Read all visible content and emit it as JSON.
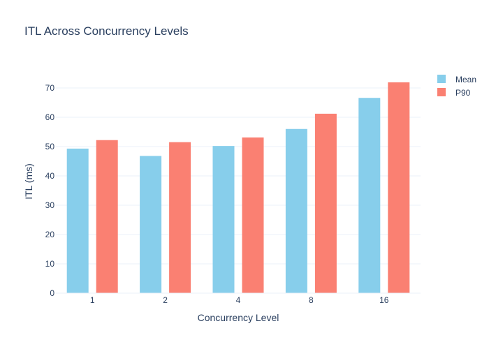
{
  "chart_data": {
    "type": "bar",
    "title": "ITL Across Concurrency Levels",
    "xlabel": "Concurrency Level",
    "ylabel": "ITL (ms)",
    "categories": [
      "1",
      "2",
      "4",
      "8",
      "16"
    ],
    "series": [
      {
        "name": "Mean",
        "color": "#87ceeb",
        "values": [
          49.3,
          46.8,
          50.2,
          56.0,
          66.6
        ]
      },
      {
        "name": "P90",
        "color": "#fa8072",
        "values": [
          52.2,
          51.5,
          53.1,
          61.2,
          71.9
        ]
      }
    ],
    "yticks": [
      0,
      10,
      20,
      30,
      40,
      50,
      60,
      70
    ],
    "ylim": [
      0,
      75.7
    ],
    "grid": true,
    "legend_position": "top-right"
  }
}
